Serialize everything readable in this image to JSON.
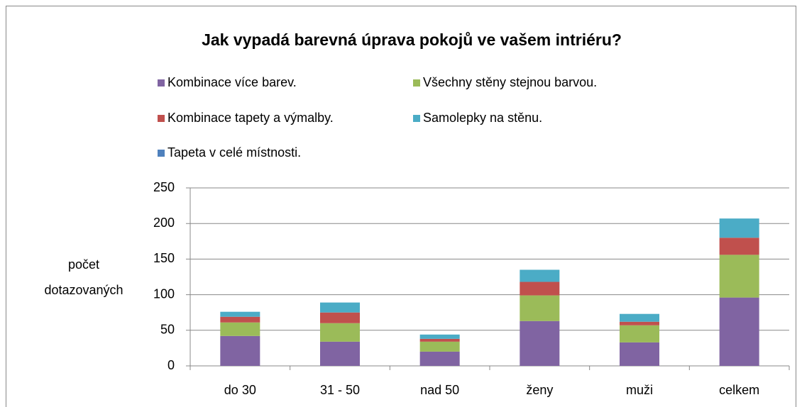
{
  "chart_data": {
    "type": "stacked_bar",
    "title": "Jak vypadá barevná úprava pokojů ve vašem intriéru?",
    "y_label": "počet dotazovaných",
    "categories": [
      "do 30",
      "31 - 50",
      "nad 50",
      "ženy",
      "muži",
      "celkem"
    ],
    "series": [
      {
        "name": "Kombinace více barev.",
        "color": "#8064a2",
        "values": [
          42,
          34,
          20,
          63,
          33,
          96
        ]
      },
      {
        "name": "Všechny stěny stejnou barvou.",
        "color": "#9bbb59",
        "values": [
          19,
          26,
          14,
          36,
          24,
          60
        ]
      },
      {
        "name": "Kombinace tapety a výmalby.",
        "color": "#c0504d",
        "values": [
          8,
          15,
          4,
          19,
          5,
          24
        ]
      },
      {
        "name": "Samolepky na stěnu.",
        "color": "#4bacc6",
        "values": [
          7,
          14,
          6,
          17,
          11,
          27
        ]
      },
      {
        "name": "Tapeta v celé místnosti.",
        "color": "#4f81bd",
        "values": [
          0,
          0,
          0,
          0,
          0,
          0
        ]
      }
    ],
    "ylim": [
      0,
      250
    ],
    "yticks": [
      0,
      50,
      100,
      150,
      200,
      250
    ],
    "grid": true,
    "legend": "top"
  }
}
